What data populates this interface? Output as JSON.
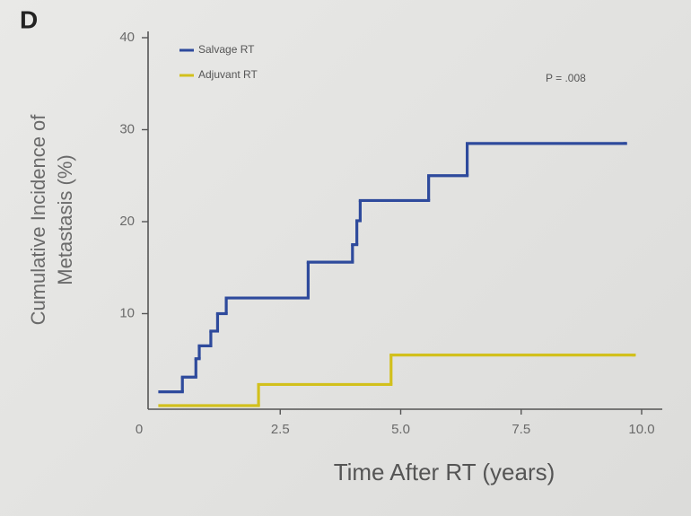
{
  "chart_data": {
    "type": "line",
    "step": "post",
    "panel_label": "D",
    "ylabel": [
      "Cumulative Incidence of",
      "Metastasis (%)"
    ],
    "xlabel": "Time After RT (years)",
    "annotation": "P = .008",
    "xlim": [
      0,
      10.3
    ],
    "ylim": [
      0,
      40.5
    ],
    "xticks": [
      0,
      2.5,
      {
        "value": 5,
        "label": "5.0"
      },
      7.5,
      {
        "value": 10,
        "label": "10.0"
      }
    ],
    "yticks": [
      10,
      20,
      30,
      40
    ],
    "legend": "upper left",
    "series": [
      {
        "name": "Salvage RT",
        "color": "#2e4a9c",
        "x": [
          0,
          0.47,
          0.75,
          0.82,
          1.06,
          1.2,
          1.38,
          3.08,
          4.0,
          4.09,
          4.16,
          5.58,
          6.38,
          9.65
        ],
        "values": [
          1.5,
          3.1,
          5.1,
          6.5,
          8.1,
          10,
          11.7,
          15.6,
          17.5,
          20.1,
          22.3,
          25,
          28.5,
          28.5
        ]
      },
      {
        "name": "Adjuvant RT",
        "color": "#d2c01c",
        "x": [
          0,
          2.05,
          4.8,
          9.83
        ],
        "values": [
          0,
          2.3,
          5.5,
          5.5
        ]
      }
    ]
  }
}
